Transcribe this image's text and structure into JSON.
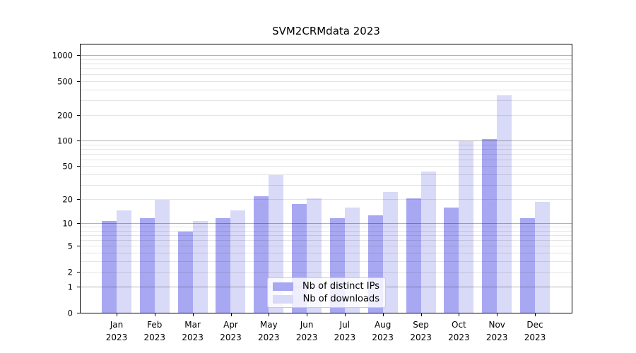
{
  "chart_data": {
    "type": "bar",
    "title": "SVM2CRMdata 2023",
    "x_tick_months": [
      "Jan",
      "Feb",
      "Mar",
      "Apr",
      "May",
      "Jun",
      "Jul",
      "Aug",
      "Sep",
      "Oct",
      "Nov",
      "Dec"
    ],
    "x_tick_year": "2023",
    "categories": [
      "Jan 2023",
      "Feb 2023",
      "Mar 2023",
      "Apr 2023",
      "May 2023",
      "Jun 2023",
      "Jul 2023",
      "Aug 2023",
      "Sep 2023",
      "Oct 2023",
      "Nov 2023",
      "Dec 2023"
    ],
    "series": [
      {
        "name": "Nb of distinct IPs",
        "color": "#a8a8f2",
        "values": [
          11,
          12,
          8,
          12,
          22,
          18,
          12,
          13,
          21,
          16,
          107,
          12
        ]
      },
      {
        "name": "Nb of downloads",
        "color": "#d9d9f8",
        "values": [
          15,
          20,
          11,
          15,
          40,
          21,
          16,
          25,
          44,
          100,
          350,
          19
        ]
      }
    ],
    "y_axis": {
      "scale": "log(1+y)",
      "tick_labels": [
        "0",
        "1",
        "2",
        "5",
        "10",
        "20",
        "50",
        "100",
        "200",
        "500",
        "1000"
      ],
      "tick_values": [
        0,
        1,
        2,
        5,
        10,
        20,
        50,
        100,
        200,
        500,
        1000
      ],
      "major_grid_values": [
        1,
        10,
        100,
        1000
      ],
      "minor_grid_values": [
        2,
        3,
        4,
        5,
        6,
        7,
        8,
        9,
        20,
        30,
        40,
        50,
        60,
        70,
        80,
        90,
        200,
        300,
        400,
        500,
        600,
        700,
        800,
        900
      ]
    },
    "legend": {
      "entries": [
        "Nb of distinct IPs",
        "Nb of downloads"
      ],
      "position": "lower center"
    },
    "grid": true,
    "colors": {
      "bar_dark": "#a8a8f2",
      "bar_light": "#d9d9f8",
      "axis": "#000000",
      "legend_border": "#cccccc"
    }
  }
}
